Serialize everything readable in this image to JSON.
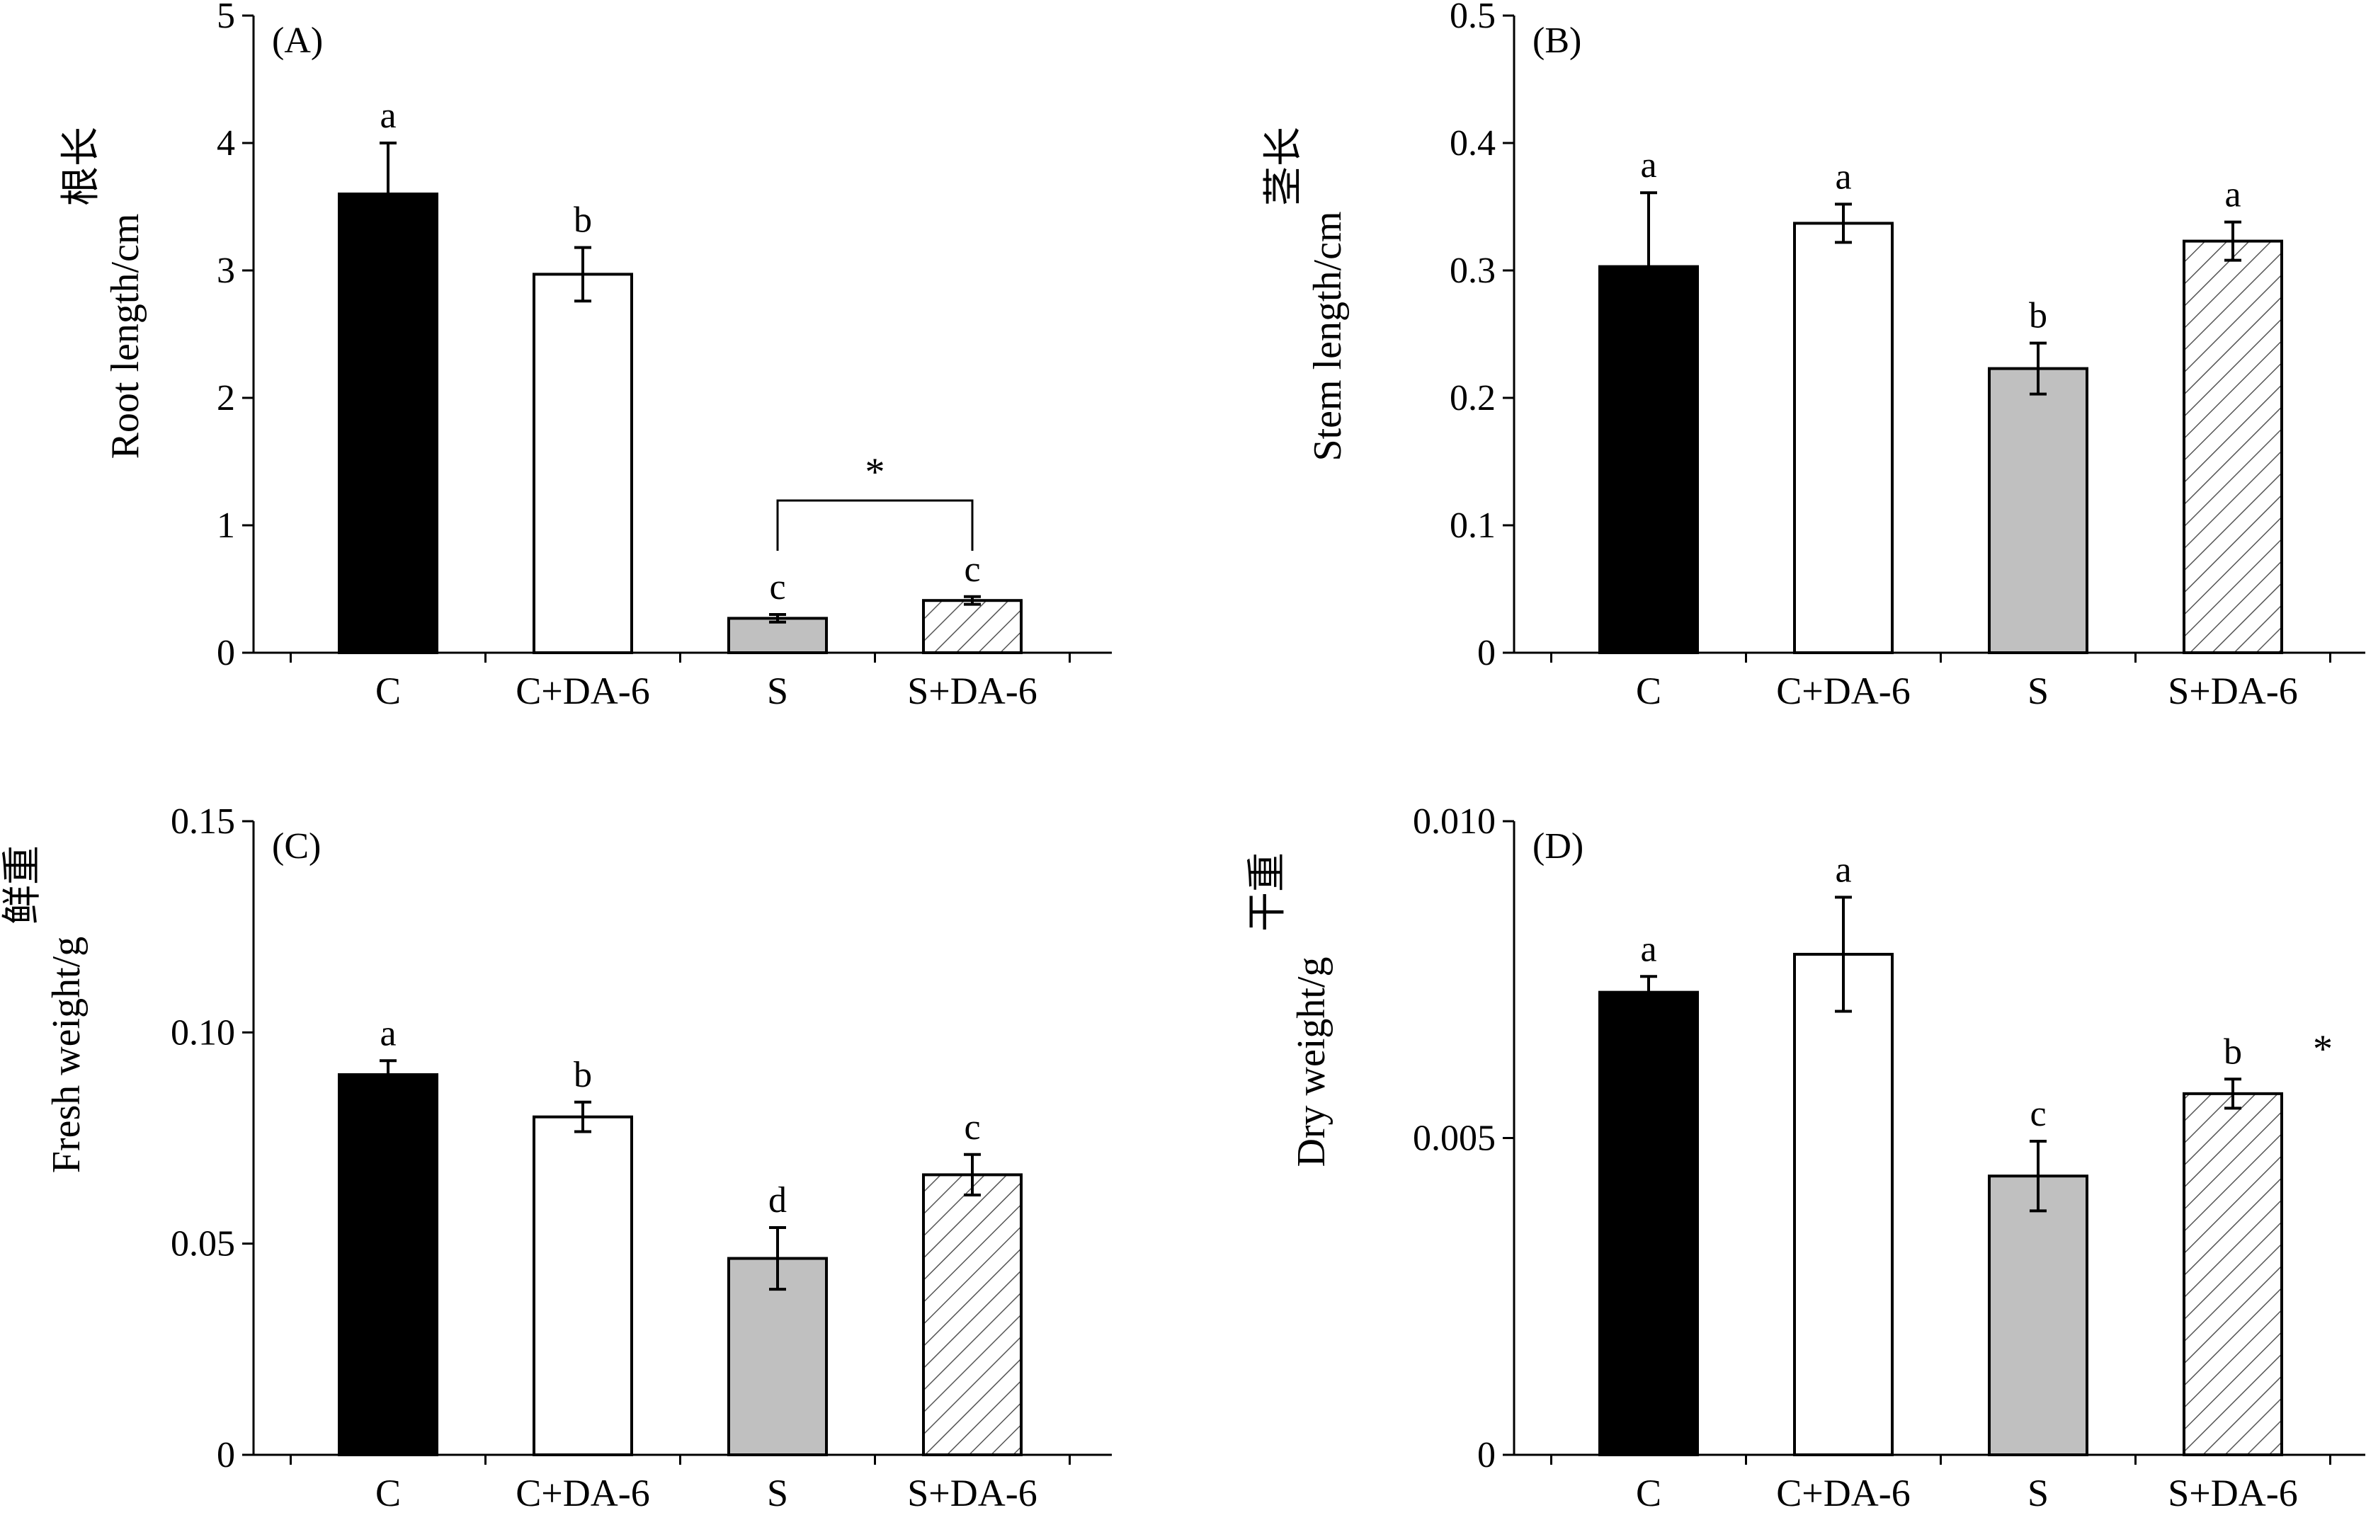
{
  "chart_data": [
    {
      "type": "bar",
      "panel_label": "(A)",
      "ylabel_cn": "根长",
      "ylabel": "Root length/cm",
      "categories": [
        "C",
        "C+DA-6",
        "S",
        "S+DA-6"
      ],
      "values": [
        3.6,
        2.97,
        0.27,
        0.41
      ],
      "errors": [
        0.4,
        0.21,
        0.03,
        0.03
      ],
      "letters": [
        "a",
        "b",
        "c",
        "c"
      ],
      "ylim": [
        0,
        5
      ],
      "yticks": [
        "0",
        "1",
        "2",
        "3",
        "4",
        "5"
      ],
      "bracket": {
        "from": 2,
        "to": 3,
        "label": "*"
      },
      "star": ""
    },
    {
      "type": "bar",
      "panel_label": "(B)",
      "ylabel_cn": "茎长",
      "ylabel": "Stem length/cm",
      "categories": [
        "C",
        "C+DA-6",
        "S",
        "S+DA-6"
      ],
      "values": [
        0.303,
        0.337,
        0.223,
        0.323
      ],
      "errors": [
        0.058,
        0.015,
        0.02,
        0.015
      ],
      "letters": [
        "a",
        "a",
        "b",
        "a"
      ],
      "ylim": [
        0,
        0.5
      ],
      "yticks": [
        "0",
        "0.1",
        "0.2",
        "0.3",
        "0.4",
        "0.5"
      ],
      "bracket": null,
      "star": ""
    },
    {
      "type": "bar",
      "panel_label": "(C)",
      "ylabel_cn": "鲜重",
      "ylabel": "Fresh weight/g",
      "categories": [
        "C",
        "C+DA-6",
        "S",
        "S+DA-6"
      ],
      "values": [
        0.09,
        0.08,
        0.0465,
        0.0663
      ],
      "errors": [
        0.0033,
        0.0035,
        0.0073,
        0.0048
      ],
      "letters": [
        "a",
        "b",
        "d",
        "c"
      ],
      "ylim": [
        0,
        0.15
      ],
      "yticks": [
        "0",
        "0.05",
        "0.10",
        "0.15"
      ],
      "bracket": null,
      "star": ""
    },
    {
      "type": "bar",
      "panel_label": "(D)",
      "ylabel_cn": "干重",
      "ylabel": "Dry weight/g",
      "categories": [
        "C",
        "C+DA-6",
        "S",
        "S+DA-6"
      ],
      "values": [
        0.0073,
        0.0079,
        0.0044,
        0.0057
      ],
      "errors": [
        0.00025,
        0.0009,
        0.00055,
        0.00023
      ],
      "letters": [
        "a",
        "a",
        "c",
        "b"
      ],
      "ylim": [
        0,
        0.01
      ],
      "yticks": [
        "0",
        "0.005",
        "0.010"
      ],
      "bracket": null,
      "star": "*"
    }
  ],
  "styles": {
    "bar_fills": [
      "#000000",
      "#ffffff",
      "#c0c0c0",
      "hatch"
    ],
    "stroke": "#000000",
    "hatch_color": "#555555"
  }
}
